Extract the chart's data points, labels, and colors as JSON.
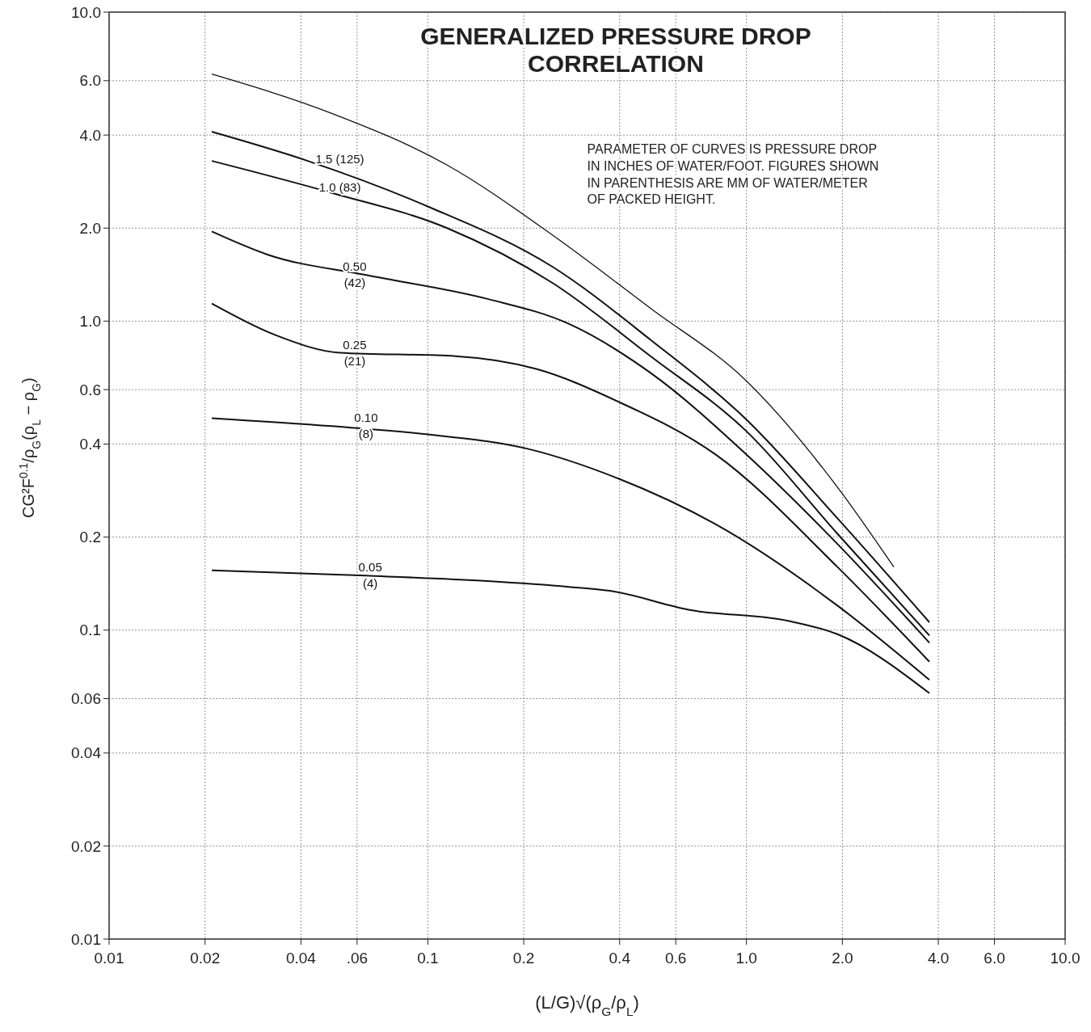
{
  "chart_data": {
    "type": "line",
    "title": "GENERALIZED PRESSURE DROP\nCORRELATION",
    "xlabel": "(L/G)√(ρ$_{G}$/ρ$_{L}$)",
    "ylabel": "CG²F$^{0.1}$/ρ$_{G}$(ρ$_{L}$ − ρ$_{G}$)",
    "log": "xy",
    "grid": true,
    "marker": "none",
    "line_style": "solid",
    "xlim": [
      0.01,
      10
    ],
    "ylim": [
      0.01,
      10
    ],
    "xticks": [
      {
        "value": 0.01,
        "label": "0.01"
      },
      {
        "value": 0.02,
        "label": "0.02"
      },
      {
        "value": 0.04,
        "label": "0.04"
      },
      {
        "value": 0.06,
        "label": ".06"
      },
      {
        "value": 0.1,
        "label": "0.1"
      },
      {
        "value": 0.2,
        "label": "0.2"
      },
      {
        "value": 0.4,
        "label": "0.4"
      },
      {
        "value": 0.6,
        "label": "0.6"
      },
      {
        "value": 1,
        "label": "1.0"
      },
      {
        "value": 2,
        "label": "2.0"
      },
      {
        "value": 4,
        "label": "4.0"
      },
      {
        "value": 6,
        "label": "6.0"
      },
      {
        "value": 10,
        "label": "10.0"
      }
    ],
    "yticks": [
      {
        "value": 0.01,
        "label": "0.01"
      },
      {
        "value": 0.02,
        "label": "0.02"
      },
      {
        "value": 0.04,
        "label": "0.04"
      },
      {
        "value": 0.06,
        "label": "0.06"
      },
      {
        "value": 0.1,
        "label": "0.1"
      },
      {
        "value": 0.2,
        "label": "0.2"
      },
      {
        "value": 0.4,
        "label": "0.4"
      },
      {
        "value": 0.6,
        "label": "0.6"
      },
      {
        "value": 1,
        "label": "1.0"
      },
      {
        "value": 2,
        "label": "2.0"
      },
      {
        "value": 4,
        "label": "4.0"
      },
      {
        "value": 6,
        "label": "6.0"
      },
      {
        "value": 10,
        "label": "10.0"
      }
    ],
    "series": [
      {
        "color": "#111111",
        "x": [
          0.021,
          0.05,
          0.115,
          0.246,
          0.5,
          1.0,
          1.93,
          2.9
        ],
        "values": [
          6.3,
          4.7,
          3.2,
          1.9,
          1.1,
          0.64,
          0.29,
          0.16
        ]
      },
      {
        "color": "#111111",
        "x": [
          0.021,
          0.042,
          0.1,
          0.246,
          0.5,
          1.0,
          1.93,
          3.75
        ],
        "values": [
          4.1,
          3.3,
          2.35,
          1.5,
          0.87,
          0.48,
          0.23,
          0.106
        ]
      },
      {
        "color": "#111111",
        "x": [
          0.021,
          0.05,
          0.115,
          0.246,
          0.5,
          1.0,
          1.93,
          3.75
        ],
        "values": [
          3.3,
          2.6,
          2.0,
          1.33,
          0.77,
          0.44,
          0.205,
          0.096
        ]
      },
      {
        "color": "#111111",
        "x": [
          0.021,
          0.0315,
          0.064,
          0.154,
          0.277,
          0.5,
          1.0,
          1.93,
          3.75
        ],
        "values": [
          1.95,
          1.64,
          1.41,
          1.18,
          0.98,
          0.68,
          0.37,
          0.19,
          0.091
        ]
      },
      {
        "color": "#111111",
        "x": [
          0.021,
          0.0334,
          0.053,
          0.122,
          0.219,
          0.394,
          0.8,
          1.93,
          3.75
        ],
        "values": [
          1.14,
          0.9,
          0.79,
          0.77,
          0.7,
          0.55,
          0.37,
          0.16,
          0.079
        ]
      },
      {
        "color": "#111111",
        "x": [
          0.021,
          0.05,
          0.1,
          0.206,
          0.394,
          0.8,
          1.93,
          3.75
        ],
        "values": [
          0.485,
          0.457,
          0.43,
          0.386,
          0.31,
          0.22,
          0.12,
          0.069
        ]
      },
      {
        "color": "#111111",
        "x": [
          0.021,
          0.064,
          0.154,
          0.277,
          0.372,
          0.67,
          1.36,
          1.93,
          3.75
        ],
        "values": [
          0.156,
          0.15,
          0.144,
          0.138,
          0.134,
          0.116,
          0.107,
          0.097,
          0.0625
        ]
      }
    ],
    "annotations": [
      {
        "text": "1.5 (125)",
        "x": 0.053,
        "y": 3.15
      },
      {
        "text": "1.0 (83)",
        "x": 0.053,
        "y": 2.55
      },
      {
        "text": "0.50\n(42)",
        "x": 0.059,
        "y": 1.41
      },
      {
        "text": "0.25\n(21)",
        "x": 0.059,
        "y": 0.786
      },
      {
        "text": "0.10\n(8)",
        "x": 0.064,
        "y": 0.457
      },
      {
        "text": "0.05\n(4)",
        "x": 0.066,
        "y": 0.15
      },
      "PARAMETER OF CURVES IS PRESSURE DROP\nIN INCHES OF WATER/FOOT. FIGURES SHOWN\nIN PARENTHESIS ARE MM OF WATER/METER\nOF PACKED HEIGHT."
    ]
  }
}
